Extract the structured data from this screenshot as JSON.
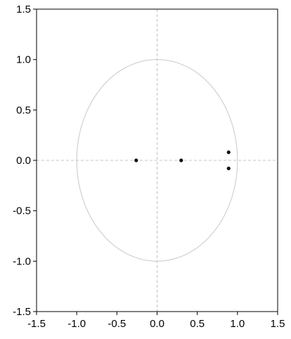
{
  "chart_data": {
    "type": "scatter",
    "title": "",
    "xlabel": "",
    "ylabel": "",
    "xlim": [
      -1.5,
      1.5
    ],
    "ylim": [
      -1.5,
      1.5
    ],
    "x_ticks": [
      "-1.5",
      "-1.0",
      "-0.5",
      "0.0",
      "0.5",
      "1.0",
      "1.5"
    ],
    "y_ticks": [
      "1.5",
      "1.0",
      "0.5",
      "0.0",
      "-0.5",
      "-1.0",
      "-1.5"
    ],
    "points": [
      {
        "x": -0.26,
        "y": 0.0
      },
      {
        "x": 0.3,
        "y": 0.0
      },
      {
        "x": 0.89,
        "y": 0.08
      },
      {
        "x": 0.89,
        "y": -0.08
      }
    ],
    "unit_circle": true,
    "reference_lines": {
      "x": 0,
      "y": 0
    },
    "grid": false,
    "colors": {
      "points": "#111111",
      "circle": "#c8c8c8",
      "reference": "#b4b4b4",
      "frame": "#000000"
    }
  }
}
